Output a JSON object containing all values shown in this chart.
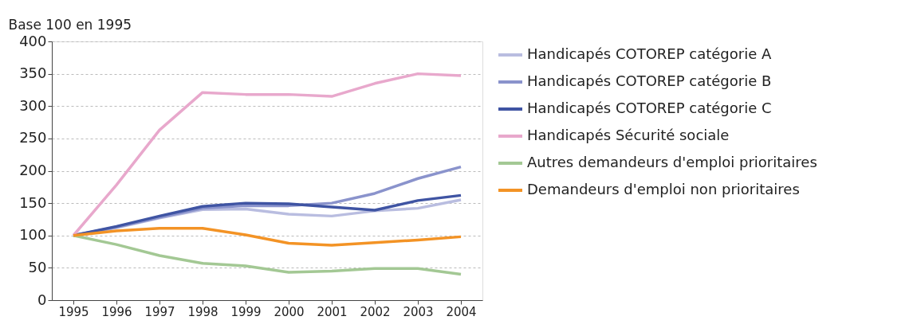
{
  "chart_data": {
    "type": "line",
    "ylabel": "Base 100 en 1995",
    "categories": [
      "1995",
      "1996",
      "1997",
      "1998",
      "1999",
      "2000",
      "2001",
      "2002",
      "2003",
      "2004"
    ],
    "series": [
      {
        "name": "Handicapés COTOREP catégorie A",
        "color": "#b9bde0",
        "values": [
          100,
          112,
          127,
          140,
          141,
          133,
          130,
          138,
          142,
          155
        ]
      },
      {
        "name": "Handicapés COTOREP catégorie B",
        "color": "#8a93cc",
        "values": [
          100,
          113,
          128,
          142,
          146,
          146,
          150,
          165,
          188,
          206
        ]
      },
      {
        "name": "Handicapés COTOREP catégorie C",
        "color": "#3f54a3",
        "values": [
          100,
          114,
          130,
          145,
          150,
          149,
          144,
          139,
          154,
          162
        ]
      },
      {
        "name": "Handicapés Sécurité sociale",
        "color": "#e8a8cc",
        "values": [
          100,
          178,
          263,
          321,
          318,
          318,
          315,
          335,
          350,
          347
        ]
      },
      {
        "name": "Autres demandeurs d'emploi prioritaires",
        "color": "#a3c894",
        "values": [
          100,
          86,
          69,
          57,
          53,
          43,
          45,
          49,
          49,
          40
        ]
      },
      {
        "name": "Demandeurs d'emploi non prioritaires",
        "color": "#f39325",
        "values": [
          100,
          107,
          111,
          111,
          101,
          88,
          85,
          89,
          93,
          98
        ]
      }
    ],
    "ylim": [
      0,
      400
    ],
    "yticks": [
      0,
      50,
      100,
      150,
      200,
      250,
      300,
      350,
      400
    ],
    "grid": "y",
    "legend": "right",
    "marker": "none",
    "line_style": "solid"
  }
}
